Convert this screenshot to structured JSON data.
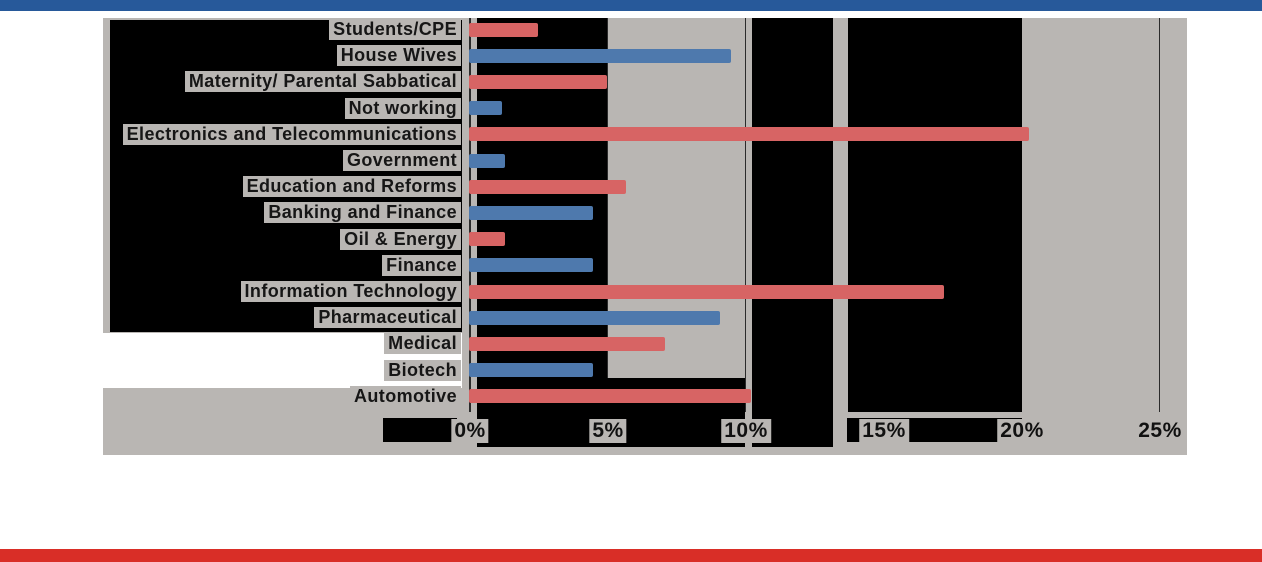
{
  "slide": {
    "top_bar_color": "#27599a",
    "bottom_bar_color": "#d92e27",
    "background_color": "#ffffff"
  },
  "chart_data": {
    "type": "bar",
    "orientation": "horizontal",
    "title": "",
    "xlabel": "",
    "ylabel": "",
    "legend": false,
    "grid": true,
    "plot_background": "#b9b6b3",
    "artifact_box_color": "#000000",
    "gridline_color": "#2b2b2b",
    "category_text_color": "#161616",
    "tick_text_color": "#111111",
    "bar_color_red": "#d76464",
    "bar_color_blue": "#4e79ad",
    "xlim": [
      0,
      25
    ],
    "x_ticks": [
      {
        "label": "0%",
        "value": 0
      },
      {
        "label": "5%",
        "value": 5
      },
      {
        "label": "10%",
        "value": 10
      },
      {
        "label": "15%",
        "value": 15
      },
      {
        "label": "20%",
        "value": 20
      },
      {
        "label": "25%",
        "value": 25
      }
    ],
    "categories": [
      "Students/CPE",
      "House Wives",
      "Maternity/ Parental Sabbatical",
      "Not working",
      "Electronics and Telecommunications",
      "Government",
      "Education and Reforms",
      "Banking and Finance",
      "Oil & Energy",
      "Finance",
      "Information Technology",
      "Pharmaceutical",
      "Medical",
      "Biotech",
      "Automotive"
    ],
    "values": [
      2.5,
      9.5,
      5.0,
      1.2,
      20.3,
      1.3,
      5.7,
      4.5,
      1.3,
      4.5,
      17.2,
      9.1,
      7.1,
      4.5,
      10.2
    ],
    "point_colors": [
      "#d76464",
      "#4e79ad",
      "#d76464",
      "#4e79ad",
      "#d76464",
      "#4e79ad",
      "#d76464",
      "#4e79ad",
      "#d76464",
      "#4e79ad",
      "#d76464",
      "#4e79ad",
      "#d76464",
      "#4e79ad",
      "#d76464"
    ]
  }
}
